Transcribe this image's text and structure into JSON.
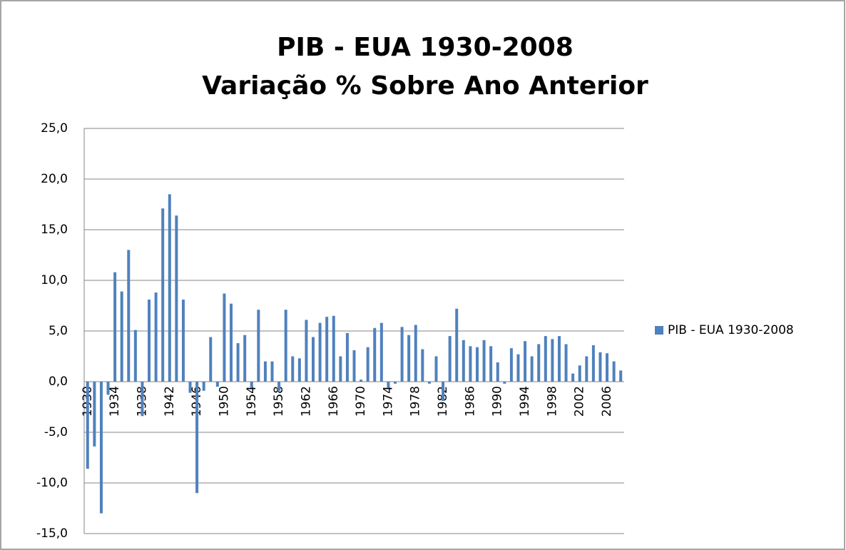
{
  "chart_data": {
    "type": "bar",
    "title": "PIB - EUA 1930-2008",
    "subtitle": "Variação % Sobre Ano Anterior",
    "categories": [
      "1930",
      null,
      null,
      null,
      "1934",
      null,
      null,
      null,
      "1938",
      null,
      null,
      null,
      "1942",
      null,
      null,
      null,
      "1946",
      null,
      null,
      null,
      "1950",
      null,
      null,
      null,
      "1954",
      null,
      null,
      null,
      "1958",
      null,
      null,
      null,
      "1962",
      null,
      null,
      null,
      "1966",
      null,
      null,
      null,
      "1970",
      null,
      null,
      null,
      "1974",
      null,
      null,
      null,
      "1978",
      null,
      null,
      null,
      "1982",
      null,
      null,
      null,
      "1986",
      null,
      null,
      null,
      "1990",
      null,
      null,
      null,
      "1994",
      null,
      null,
      null,
      "1998",
      null,
      null,
      null,
      "2002",
      null,
      null,
      null,
      "2006",
      null,
      null
    ],
    "series": [
      {
        "name": "PIB - EUA 1930-2008",
        "color": "#4f81bd",
        "values": [
          -8.6,
          -6.4,
          -13.0,
          -1.3,
          10.8,
          8.9,
          13.0,
          5.1,
          -3.4,
          8.1,
          8.8,
          17.1,
          18.5,
          16.4,
          8.1,
          -1.1,
          -11.0,
          -0.9,
          4.4,
          -0.5,
          8.7,
          7.7,
          3.8,
          4.6,
          -0.6,
          7.1,
          2.0,
          2.0,
          -0.9,
          7.1,
          2.5,
          2.3,
          6.1,
          4.4,
          5.8,
          6.4,
          6.5,
          2.5,
          4.8,
          3.1,
          0.2,
          3.4,
          5.3,
          5.8,
          -0.6,
          -0.2,
          5.4,
          4.6,
          5.6,
          3.2,
          -0.2,
          2.5,
          -1.9,
          4.5,
          7.2,
          4.1,
          3.5,
          3.4,
          4.1,
          3.5,
          1.9,
          -0.2,
          3.3,
          2.7,
          4.0,
          2.5,
          3.7,
          4.5,
          4.2,
          4.5,
          3.7,
          0.8,
          1.6,
          2.5,
          3.6,
          2.9,
          2.8,
          2.0,
          1.1
        ]
      }
    ],
    "ylim": [
      -15,
      25
    ],
    "yticks": [
      {
        "value": -15,
        "label": "-15,0"
      },
      {
        "value": -10,
        "label": "-10,0"
      },
      {
        "value": -5,
        "label": "-5,0"
      },
      {
        "value": 0,
        "label": "0,0"
      },
      {
        "value": 5,
        "label": "5,0"
      },
      {
        "value": 10,
        "label": "10,0"
      },
      {
        "value": 15,
        "label": "15,0"
      },
      {
        "value": 20,
        "label": "20,0"
      },
      {
        "value": 25,
        "label": "25,0"
      }
    ],
    "grid": true,
    "legend": "right"
  }
}
